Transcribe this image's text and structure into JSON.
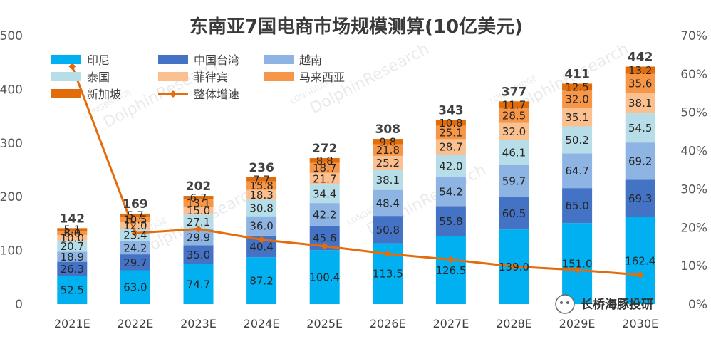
{
  "chart_data": {
    "type": "bar",
    "title": "东南亚7国电商市场规模测算(10亿美元)",
    "categories": [
      "2021E",
      "2022E",
      "2023E",
      "2024E",
      "2025E",
      "2026E",
      "2027E",
      "2028E",
      "2029E",
      "2030E"
    ],
    "series": [
      {
        "name": "印尼",
        "color": "#00b0f0",
        "values": [
          52.5,
          63.0,
          74.7,
          87.2,
          100.4,
          113.5,
          126.5,
          139.0,
          151.0,
          162.4
        ]
      },
      {
        "name": "中国台湾",
        "color": "#4472c4",
        "values": [
          26.3,
          29.7,
          35.0,
          40.4,
          45.6,
          50.8,
          55.8,
          60.5,
          65.0,
          69.3
        ]
      },
      {
        "name": "越南",
        "color": "#8eb4e3",
        "values": [
          18.9,
          24.2,
          29.9,
          36.0,
          42.2,
          48.4,
          54.2,
          59.7,
          64.7,
          69.2
        ]
      },
      {
        "name": "泰国",
        "color": "#b7dee8",
        "values": [
          20.7,
          23.4,
          27.1,
          30.8,
          34.4,
          38.1,
          42.0,
          46.1,
          50.2,
          54.5
        ]
      },
      {
        "name": "菲律宾",
        "color": "#fac090",
        "values": [
          10.0,
          12.0,
          15.0,
          18.3,
          21.7,
          25.2,
          28.7,
          32.0,
          35.1,
          38.1
        ]
      },
      {
        "name": "马来西亚",
        "color": "#f79646",
        "values": [
          8.0,
          10.5,
          13.1,
          15.8,
          18.7,
          21.8,
          25.1,
          28.5,
          32.0,
          35.6
        ]
      },
      {
        "name": "新加坡",
        "color": "#e26b0a",
        "values": [
          5.1,
          5.7,
          6.7,
          7.7,
          8.8,
          9.8,
          10.8,
          11.7,
          12.5,
          13.2
        ]
      }
    ],
    "totals": [
      142,
      169,
      202,
      236,
      272,
      308,
      343,
      377,
      411,
      442
    ],
    "line": {
      "name": "整体增速",
      "color": "#e46c0a",
      "axis": "right",
      "values_pct": [
        62.0,
        18.5,
        19.6,
        16.8,
        15.1,
        13.1,
        11.6,
        9.8,
        8.9,
        7.6
      ]
    },
    "left_axis": {
      "ylim": [
        0,
        500
      ],
      "ticks": [
        "0",
        "100",
        "200",
        "300",
        "400",
        "500"
      ]
    },
    "right_axis": {
      "ylim": [
        0,
        70
      ],
      "ticks": [
        "0%",
        "10%",
        "20%",
        "30%",
        "40%",
        "50%",
        "60%",
        "70%"
      ]
    },
    "legend_position": "top-left",
    "grid": false
  },
  "label_texts": [
    [
      "52.5",
      "26.3",
      "18.9",
      "20.7",
      "10.0",
      "8.0",
      "5.1"
    ],
    [
      "63.0",
      "29.7",
      "24.2",
      "23.4",
      "12.0",
      "10.5",
      "5.7"
    ],
    [
      "74.7",
      "35.0",
      "29.9",
      "27.1",
      "15.0",
      "13.1",
      "6.7"
    ],
    [
      "87.2",
      "40.4",
      "36.0",
      "30.8",
      "18.3",
      "15.8",
      "7.7"
    ],
    [
      "100.4",
      "45.6",
      "42.2",
      "34.4",
      "21.7",
      "18.7",
      "8.8"
    ],
    [
      "113.5",
      "50.8",
      "48.4",
      "38.1",
      "25.2",
      "21.8",
      "9.8"
    ],
    [
      "126.5",
      "55.8",
      "54.2",
      "42.0",
      "28.7",
      "25.1",
      "10.8"
    ],
    [
      "139.0",
      "60.5",
      "59.7",
      "46.1",
      "32.0",
      "28.5",
      "11.7"
    ],
    [
      "151.0",
      "65.0",
      "64.7",
      "50.2",
      "35.1",
      "32.0",
      "12.5"
    ],
    [
      "162.4",
      "69.3",
      "69.2",
      "54.5",
      "38.1",
      "35.6",
      "13.2"
    ]
  ],
  "watermarks": [
    "DolphinResearch",
    "LONGBRIDGE"
  ],
  "branding": {
    "name": "长桥海豚投研"
  }
}
